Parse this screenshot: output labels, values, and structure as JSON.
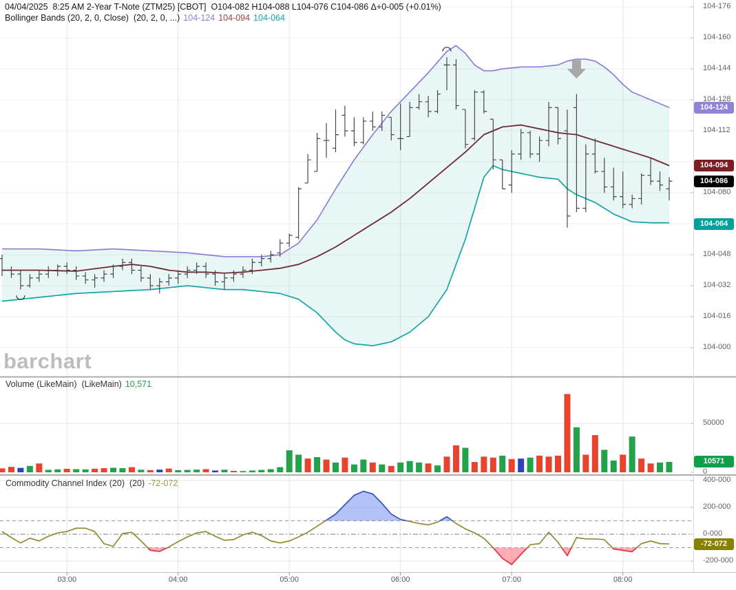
{
  "header": {
    "line1": "04/04/2025  8:25 AM 2-Year T-Note (ZTM25) [CBOT]  O104-082 H104-088 L104-076 C104-086 Δ+0-005 (+0.01%)",
    "line2_label": "Bollinger Bands (20, 2, 0, Close)  (20, 2, 0, ...)",
    "line2_upper": "104-124",
    "line2_mid": "104-094",
    "line2_lower": "104-064"
  },
  "watermark": {
    "text": "barchart"
  },
  "volume_panel": {
    "label": "Volume (LikeMain)  (LikeMain)",
    "value": "10,571"
  },
  "cci_panel": {
    "label": "Commodity Channel Index (20)  (20)",
    "value": "-72-072"
  },
  "colors": {
    "bb_upper": "#8a7fd6",
    "bb_mid": "#6d2831",
    "bb_lower": "#12a5a5",
    "band_fill": "rgba(64,180,180,0.12)",
    "ohlc_bar": "#414141",
    "vol_up": "#23a14b",
    "vol_down": "#e8432d",
    "vol_neutral": "#2c45b5",
    "cci_line": "#8f8a2e",
    "cci_high": "#3a56d4",
    "cci_low": "#e8364a",
    "cci_fill_high": "rgba(105,135,240,0.5)",
    "cci_fill_low": "rgba(250,105,125,0.55)",
    "badge_upper": "#8f83d9",
    "badge_mid": "#7a1e24",
    "badge_last": "#000000",
    "badge_lower": "#00a19b",
    "badge_volume": "#0f9f4a",
    "badge_cci": "#8a8000",
    "arrow": "#a8a8a8"
  },
  "price_axis": {
    "ticks": [
      {
        "label": "104-176",
        "value": 176
      },
      {
        "label": "104-160",
        "value": 160
      },
      {
        "label": "104-144",
        "value": 144
      },
      {
        "label": "104-128",
        "value": 128
      },
      {
        "label": "104-112",
        "value": 112
      },
      {
        "label": "104-080",
        "value": 80
      },
      {
        "label": "104-048",
        "value": 48
      },
      {
        "label": "104-032",
        "value": 32
      },
      {
        "label": "104-016",
        "value": 16
      },
      {
        "label": "104-000",
        "value": 0
      }
    ],
    "badges": [
      {
        "label": "104-124",
        "value": 124,
        "color_key": "badge_upper"
      },
      {
        "label": "104-094",
        "value": 94,
        "color_key": "badge_mid"
      },
      {
        "label": "104-086",
        "value": 86,
        "color_key": "badge_last"
      },
      {
        "label": "104-064",
        "value": 64,
        "color_key": "badge_lower"
      }
    ]
  },
  "volume_axis": {
    "ticks": [
      {
        "label": "50000",
        "value": 50000
      },
      {
        "label": "0",
        "value": 0
      }
    ],
    "badge": {
      "label": "10571",
      "value": 10571,
      "color_key": "badge_volume"
    }
  },
  "cci_axis": {
    "ticks": [
      {
        "label": "400-000",
        "value": 400
      },
      {
        "label": "200-000",
        "value": 200
      },
      {
        "label": "0-000",
        "value": 0
      },
      {
        "label": "-200-000",
        "value": -200
      }
    ],
    "badge": {
      "label": "-72-072",
      "value": -72.072,
      "color_key": "badge_cci"
    }
  },
  "time_axis": {
    "labels": [
      {
        "label": "03:00",
        "bar": 7
      },
      {
        "label": "04:00",
        "bar": 19
      },
      {
        "label": "05:00",
        "bar": 31
      },
      {
        "label": "06:00",
        "bar": 43
      },
      {
        "label": "07:00",
        "bar": 55
      },
      {
        "label": "08:00",
        "bar": 67
      }
    ]
  },
  "chart_data": [
    {
      "type": "ohlc",
      "title": "2-Year T-Note (ZTM25) 5-minute bars with Bollinger Bands (20,2)",
      "time_start": "02:25",
      "time_end": "08:25",
      "interval_minutes": 5,
      "price_base": "104",
      "price_units_note": "values are the -XXX part of 104-XXX labels",
      "ylim": [
        0,
        176
      ],
      "ohlc": [
        [
          46,
          48,
          37,
          40
        ],
        [
          40,
          42,
          36,
          38
        ],
        [
          38,
          40,
          30,
          32
        ],
        [
          32,
          38,
          31,
          36
        ],
        [
          36,
          40,
          34,
          38
        ],
        [
          38,
          42,
          36,
          40
        ],
        [
          40,
          43,
          37,
          42
        ],
        [
          42,
          44,
          38,
          40
        ],
        [
          40,
          42,
          35,
          37
        ],
        [
          37,
          39,
          33,
          35
        ],
        [
          35,
          38,
          31,
          36
        ],
        [
          36,
          40,
          34,
          38
        ],
        [
          38,
          43,
          36,
          42
        ],
        [
          42,
          46,
          40,
          44
        ],
        [
          44,
          46,
          38,
          40
        ],
        [
          40,
          42,
          34,
          36
        ],
        [
          36,
          38,
          30,
          32
        ],
        [
          32,
          36,
          28,
          34
        ],
        [
          34,
          38,
          32,
          36
        ],
        [
          36,
          40,
          33,
          38
        ],
        [
          38,
          42,
          36,
          40
        ],
        [
          40,
          44,
          38,
          42
        ],
        [
          42,
          44,
          36,
          38
        ],
        [
          38,
          40,
          32,
          34
        ],
        [
          34,
          38,
          30,
          36
        ],
        [
          36,
          40,
          34,
          38
        ],
        [
          38,
          42,
          36,
          40
        ],
        [
          40,
          46,
          38,
          44
        ],
        [
          44,
          48,
          42,
          46
        ],
        [
          46,
          50,
          44,
          48
        ],
        [
          49,
          56,
          47,
          54
        ],
        [
          54,
          59,
          52,
          58
        ],
        [
          57,
          83,
          56,
          82
        ],
        [
          85,
          100,
          85,
          97
        ],
        [
          91,
          111,
          91,
          108
        ],
        [
          107,
          116,
          98,
          107
        ],
        [
          103,
          123,
          101,
          110
        ],
        [
          120,
          125,
          109,
          112
        ],
        [
          112,
          119,
          104,
          106
        ],
        [
          106,
          119,
          105,
          117
        ],
        [
          117,
          122,
          112,
          114
        ],
        [
          114,
          122,
          112,
          120
        ],
        [
          119,
          119,
          107,
          110
        ],
        [
          108,
          126,
          102,
          108
        ],
        [
          109,
          127,
          109,
          124
        ],
        [
          124,
          131,
          123,
          127
        ],
        [
          127,
          130,
          119,
          122
        ],
        [
          122,
          133,
          121,
          131
        ],
        [
          146,
          150,
          133,
          146
        ],
        [
          146,
          149,
          123,
          125
        ],
        [
          123,
          123,
          103,
          105
        ],
        [
          108,
          133,
          107,
          132
        ],
        [
          132,
          133,
          121,
          122
        ],
        [
          118,
          118,
          92,
          97
        ],
        [
          97,
          97,
          82,
          82
        ],
        [
          84,
          102,
          80,
          100
        ],
        [
          100,
          113,
          97,
          111
        ],
        [
          111,
          112,
          98,
          100
        ],
        [
          100,
          109,
          96,
          107
        ],
        [
          107,
          127,
          104,
          124
        ],
        [
          124,
          124,
          105,
          108
        ],
        [
          112,
          123,
          62,
          68
        ],
        [
          124,
          131,
          70,
          72
        ],
        [
          72,
          105,
          70,
          100
        ],
        [
          100,
          108,
          90,
          91
        ],
        [
          91,
          98,
          80,
          83
        ],
        [
          83,
          93,
          76,
          78
        ],
        [
          78,
          91,
          72,
          74
        ],
        [
          74,
          79,
          72,
          77
        ],
        [
          77,
          90,
          74,
          89
        ],
        [
          89,
          98,
          84,
          86
        ],
        [
          86,
          91,
          81,
          84
        ],
        [
          82,
          88,
          76,
          86
        ]
      ],
      "bollinger": {
        "upper_keypoints": [
          [
            0,
            51
          ],
          [
            4,
            51
          ],
          [
            8,
            50
          ],
          [
            12,
            51
          ],
          [
            16,
            50
          ],
          [
            20,
            49
          ],
          [
            24,
            47
          ],
          [
            28,
            47
          ],
          [
            30,
            48
          ],
          [
            32,
            54
          ],
          [
            34,
            66
          ],
          [
            36,
            82
          ],
          [
            38,
            97
          ],
          [
            40,
            110
          ],
          [
            42,
            122
          ],
          [
            44,
            132
          ],
          [
            46,
            142
          ],
          [
            48,
            153
          ],
          [
            49,
            156
          ],
          [
            50,
            152
          ],
          [
            51,
            146
          ],
          [
            52,
            143
          ],
          [
            53,
            143
          ],
          [
            54,
            144
          ],
          [
            56,
            145
          ],
          [
            58,
            145
          ],
          [
            60,
            146
          ],
          [
            61,
            148
          ],
          [
            62,
            149
          ],
          [
            63,
            149
          ],
          [
            64,
            148
          ],
          [
            65,
            145
          ],
          [
            66,
            141
          ],
          [
            67,
            136
          ],
          [
            68,
            132
          ],
          [
            69,
            130
          ],
          [
            70,
            128
          ],
          [
            71,
            126
          ],
          [
            72,
            124
          ]
        ],
        "middle_keypoints": [
          [
            0,
            40
          ],
          [
            4,
            40
          ],
          [
            8,
            39.5
          ],
          [
            12,
            42
          ],
          [
            14,
            43
          ],
          [
            16,
            42
          ],
          [
            18,
            40
          ],
          [
            20,
            39
          ],
          [
            22,
            39
          ],
          [
            24,
            38.5
          ],
          [
            26,
            39
          ],
          [
            28,
            40
          ],
          [
            30,
            41
          ],
          [
            32,
            43
          ],
          [
            34,
            47
          ],
          [
            36,
            52
          ],
          [
            38,
            58
          ],
          [
            40,
            64
          ],
          [
            42,
            70
          ],
          [
            44,
            77
          ],
          [
            46,
            85
          ],
          [
            48,
            93
          ],
          [
            50,
            101
          ],
          [
            52,
            110
          ],
          [
            54,
            114
          ],
          [
            56,
            115
          ],
          [
            58,
            113
          ],
          [
            60,
            111
          ],
          [
            62,
            110
          ],
          [
            64,
            107
          ],
          [
            66,
            104
          ],
          [
            68,
            101
          ],
          [
            70,
            98
          ],
          [
            72,
            94
          ]
        ],
        "lower_keypoints": [
          [
            0,
            24
          ],
          [
            4,
            26
          ],
          [
            8,
            28
          ],
          [
            12,
            29
          ],
          [
            16,
            30
          ],
          [
            18,
            31
          ],
          [
            20,
            32
          ],
          [
            22,
            31
          ],
          [
            24,
            30
          ],
          [
            26,
            30
          ],
          [
            28,
            29
          ],
          [
            30,
            28
          ],
          [
            32,
            25
          ],
          [
            34,
            18
          ],
          [
            36,
            8
          ],
          [
            37,
            4
          ],
          [
            38,
            2
          ],
          [
            40,
            1
          ],
          [
            42,
            3
          ],
          [
            44,
            8
          ],
          [
            46,
            16
          ],
          [
            48,
            30
          ],
          [
            50,
            56
          ],
          [
            52,
            88
          ],
          [
            53,
            94
          ],
          [
            54,
            92
          ],
          [
            56,
            90
          ],
          [
            58,
            88
          ],
          [
            60,
            87
          ],
          [
            61,
            82
          ],
          [
            62,
            79
          ],
          [
            64,
            75
          ],
          [
            66,
            69
          ],
          [
            68,
            65
          ],
          [
            70,
            64.5
          ],
          [
            72,
            64.5
          ]
        ]
      },
      "markers": [
        {
          "type": "cup-arc",
          "bar": 2,
          "price": 27
        },
        {
          "type": "cap-arc",
          "bar": 48,
          "price": 153
        },
        {
          "type": "down-arrow",
          "bar": 62,
          "price": 139
        }
      ]
    },
    {
      "type": "bar",
      "title": "Volume (LikeMain)",
      "ylim": [
        0,
        90000
      ],
      "values": [
        4000,
        5500,
        4500,
        6500,
        9000,
        2500,
        3000,
        3500,
        3200,
        3000,
        3600,
        4200,
        4600,
        4200,
        5200,
        2600,
        2200,
        2700,
        3800,
        2200,
        2400,
        2700,
        3200,
        1800,
        2600,
        1400,
        1200,
        1800,
        2400,
        3200,
        5200,
        22500,
        18000,
        14000,
        15500,
        13000,
        10000,
        15000,
        8000,
        13000,
        10000,
        8000,
        6500,
        10000,
        11500,
        10000,
        9000,
        7000,
        16000,
        27500,
        25000,
        10500,
        16000,
        15000,
        17000,
        13500,
        14000,
        15000,
        17000,
        16000,
        17000,
        80000,
        46000,
        18000,
        38000,
        23000,
        12000,
        18000,
        36500,
        14000,
        9000,
        10000,
        10571
      ],
      "colors": [
        "r",
        "r",
        "b",
        "g",
        "r",
        "g",
        "g",
        "r",
        "g",
        "g",
        "r",
        "r",
        "g",
        "g",
        "r",
        "g",
        "r",
        "b",
        "r",
        "g",
        "g",
        "g",
        "r",
        "b",
        "g",
        "r",
        "g",
        "g",
        "g",
        "g",
        "g",
        "g",
        "g",
        "r",
        "g",
        "r",
        "g",
        "r",
        "g",
        "g",
        "r",
        "g",
        "r",
        "g",
        "g",
        "g",
        "r",
        "g",
        "r",
        "r",
        "g",
        "r",
        "r",
        "r",
        "g",
        "r",
        "b",
        "g",
        "r",
        "r",
        "r",
        "r",
        "g",
        "r",
        "r",
        "g",
        "g",
        "r",
        "g",
        "r",
        "r",
        "g",
        "g"
      ]
    },
    {
      "type": "line",
      "title": "Commodity Channel Index (20)",
      "ylim": [
        -300,
        450
      ],
      "thresholds": {
        "upper": 100,
        "zero": 0,
        "lower": -100
      },
      "values": [
        20,
        -25,
        -65,
        -30,
        -50,
        -15,
        10,
        20,
        45,
        45,
        20,
        -70,
        -90,
        5,
        15,
        -50,
        -120,
        -128,
        -95,
        -55,
        -20,
        10,
        20,
        -15,
        -45,
        -40,
        -5,
        15,
        -10,
        -50,
        -65,
        -50,
        -20,
        15,
        60,
        105,
        150,
        220,
        290,
        320,
        300,
        230,
        150,
        110,
        95,
        80,
        70,
        90,
        130,
        80,
        40,
        10,
        -30,
        -100,
        -180,
        -225,
        -150,
        -78,
        -70,
        15,
        -60,
        -160,
        -25,
        -35,
        -35,
        -40,
        -110,
        -120,
        -130,
        -70,
        -50,
        -70,
        -72
      ]
    }
  ]
}
